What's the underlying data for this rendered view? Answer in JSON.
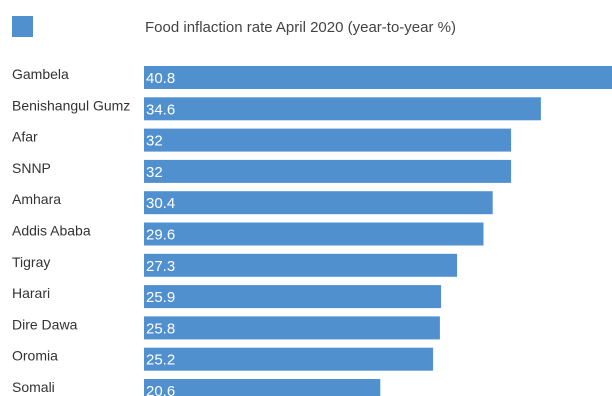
{
  "chart_data": {
    "type": "bar",
    "orientation": "horizontal",
    "categories": [
      "Gambela",
      "Benishangul Gumz",
      "Afar",
      "SNNP",
      "Amhara",
      "Addis Ababa",
      "Tigray",
      "Harari",
      "Dire Dawa",
      "Oromia",
      "Somali"
    ],
    "series": [
      {
        "name": "Food inflaction rate April 2020 (year-to-year %)",
        "values": [
          40.8,
          34.6,
          32,
          32,
          30.4,
          29.6,
          27.3,
          25.9,
          25.8,
          25.2,
          20.6
        ],
        "color": "#5190cf"
      }
    ],
    "value_labels": [
      "40.8",
      "34.6",
      "32",
      "32",
      "30.4",
      "29.6",
      "27.3",
      "25.9",
      "25.8",
      "25.2",
      "20.6"
    ],
    "xlim": [
      0,
      40.8
    ],
    "grid": false,
    "legend_position": "top"
  }
}
